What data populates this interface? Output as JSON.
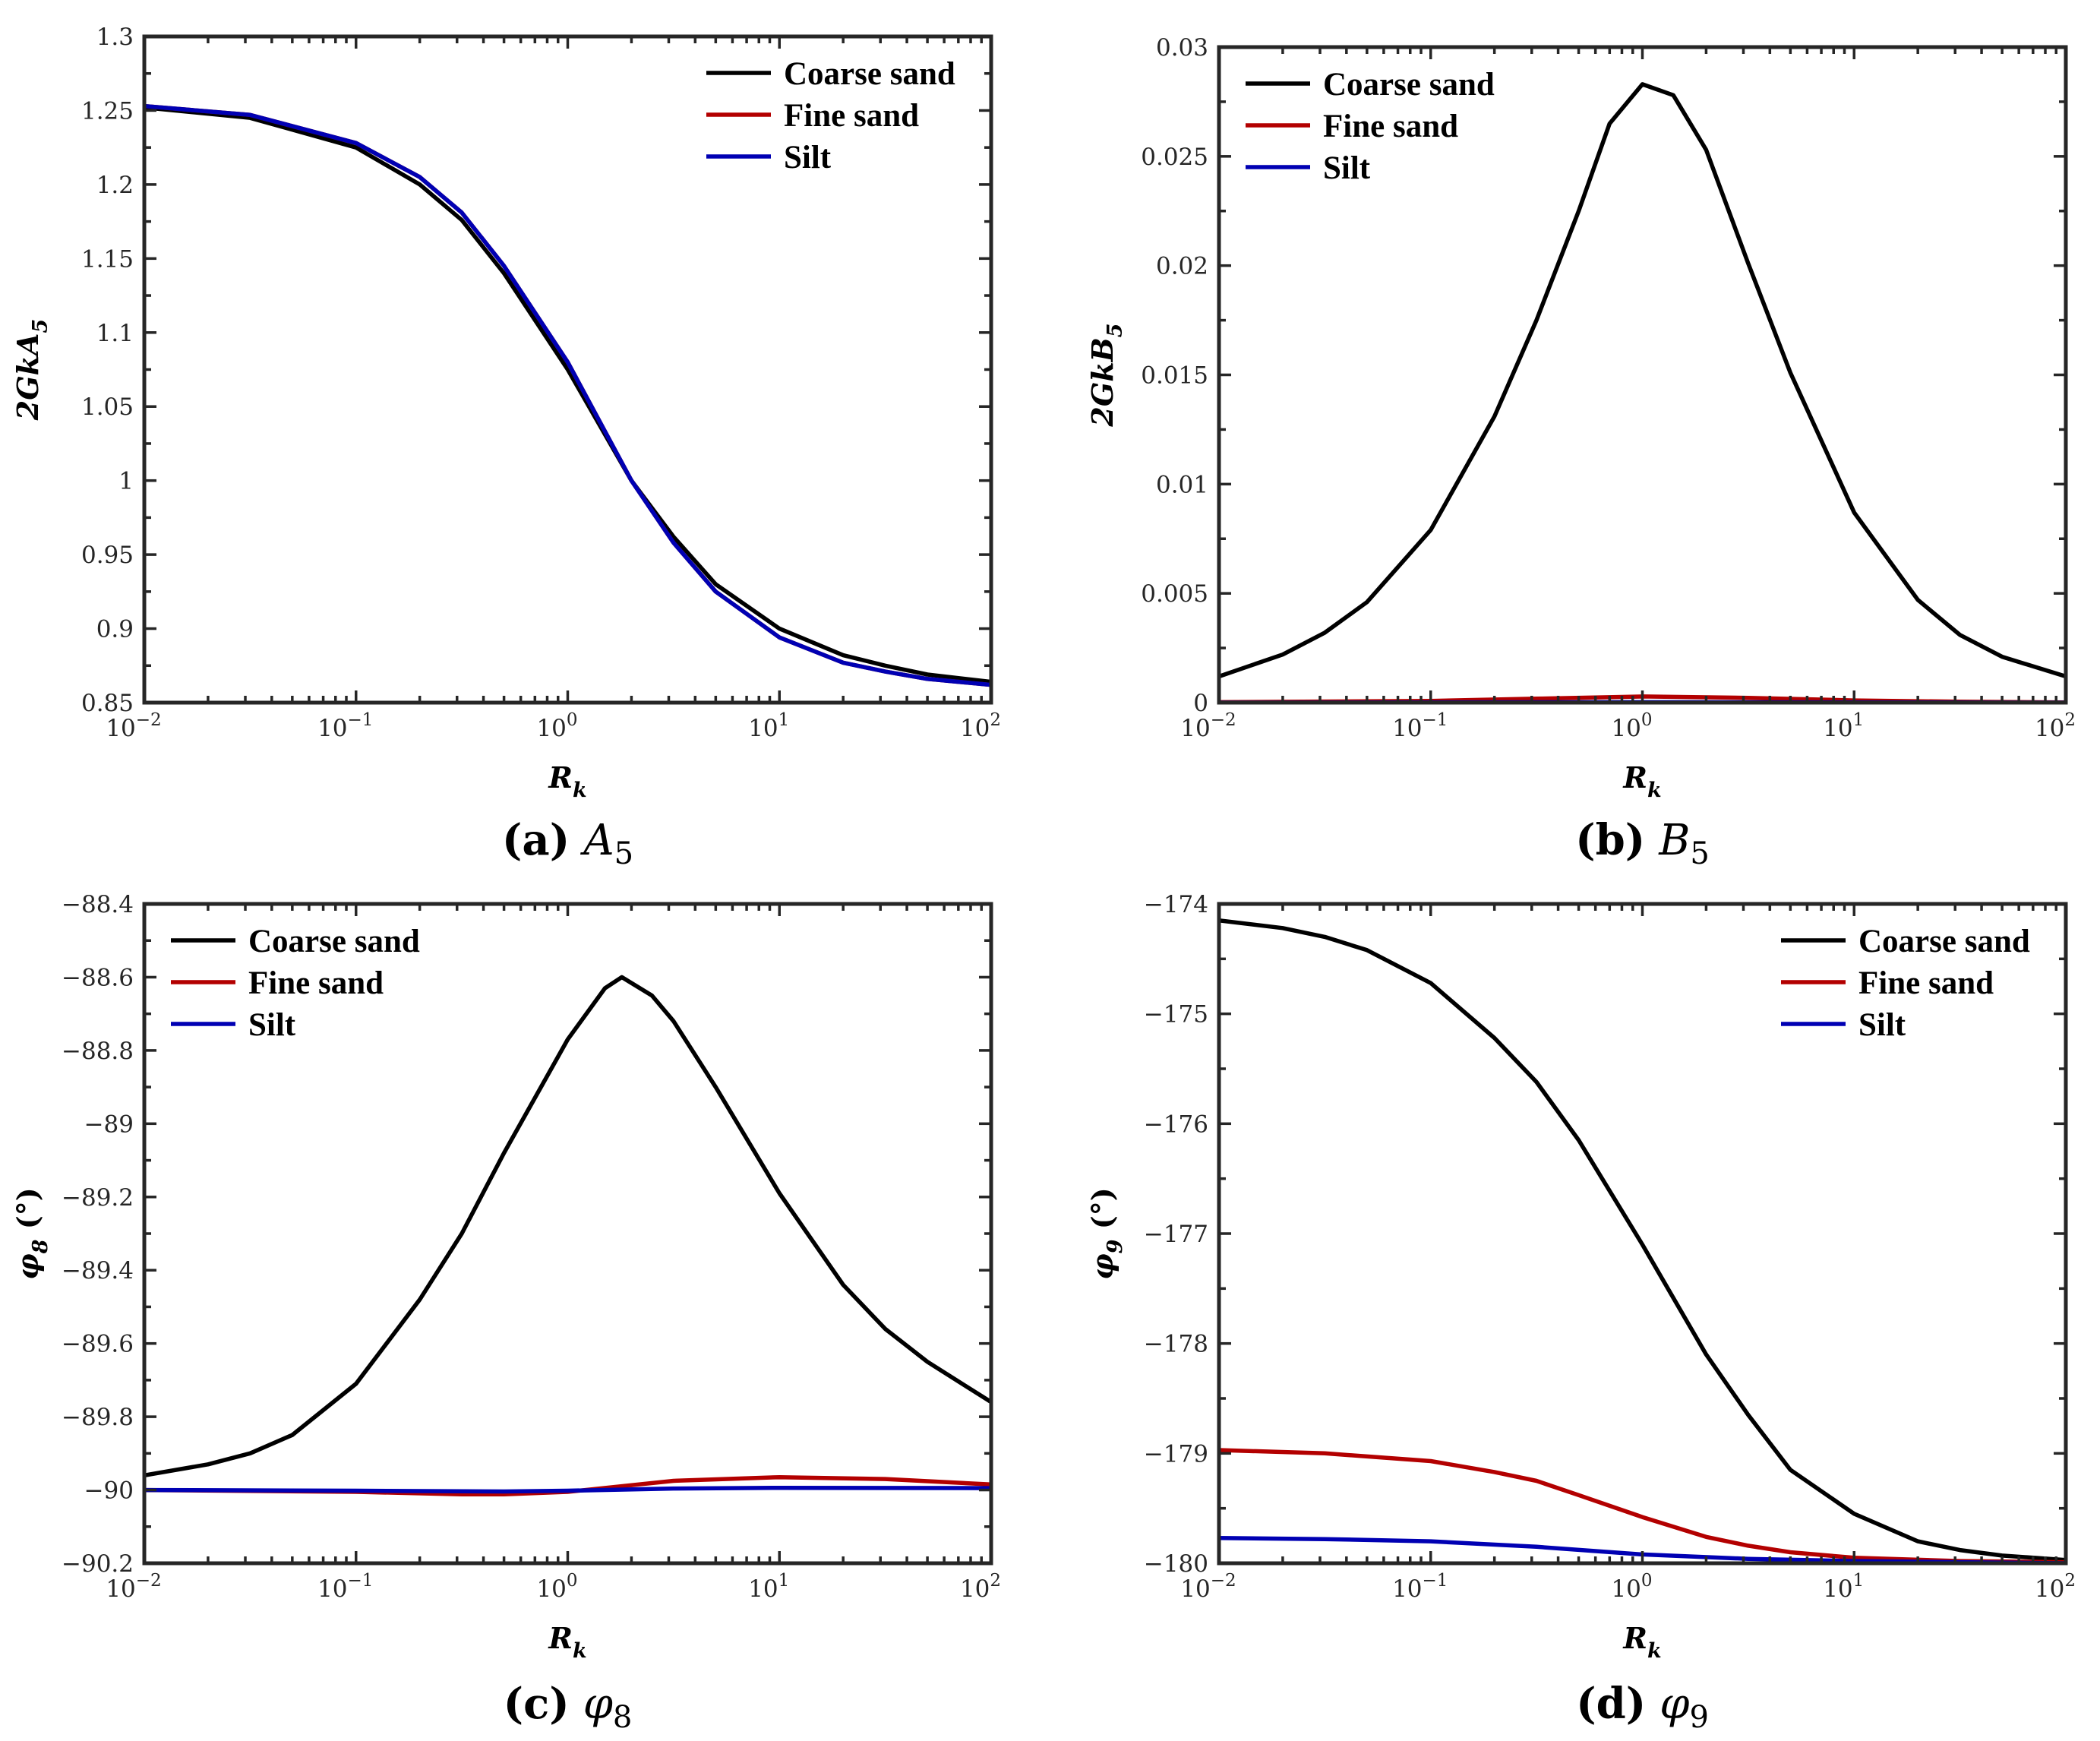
{
  "colors": {
    "coarse": "#000000",
    "fine": "#b30000",
    "silt": "#0000b3"
  },
  "chart_data": [
    {
      "id": "a",
      "type": "line",
      "xscale": "log",
      "xlim": [
        0.01,
        100
      ],
      "ylim": [
        0.85,
        1.3
      ],
      "xlabel": "R",
      "xlabel_sub": "k",
      "ylabel": "2GkA",
      "ylabel_sub": "5",
      "xticks": [
        {
          "base": "10",
          "exp": "−2"
        },
        {
          "base": "10",
          "exp": "−1"
        },
        {
          "base": "10",
          "exp": "0"
        },
        {
          "base": "10",
          "exp": "1"
        },
        {
          "base": "10",
          "exp": "2"
        }
      ],
      "yticks": [
        0.85,
        0.9,
        0.95,
        1,
        1.05,
        1.1,
        1.15,
        1.2,
        1.25,
        1.3
      ],
      "ytick_labels": [
        "0.85",
        "0.9",
        "0.95",
        "1",
        "1.05",
        "1.1",
        "1.15",
        "1.2",
        "1.25",
        "1.3"
      ],
      "legend_position": "top-right",
      "caption": {
        "tag": "(a)",
        "symbol": "A",
        "sub": "5"
      },
      "series": [
        {
          "name": "Coarse sand",
          "color_key": "coarse",
          "x": [
            0.01,
            0.0316,
            0.1,
            0.2,
            0.316,
            0.5,
            1,
            2,
            3.16,
            5,
            10,
            20,
            31.6,
            50,
            100
          ],
          "values": [
            1.252,
            1.245,
            1.225,
            1.2,
            1.176,
            1.14,
            1.075,
            1.0,
            0.962,
            0.93,
            0.9,
            0.882,
            0.875,
            0.869,
            0.864
          ]
        },
        {
          "name": "Fine sand",
          "color_key": "fine",
          "x": [
            0.01,
            0.0316,
            0.1,
            0.2,
            0.316,
            0.5,
            1,
            2,
            3.16,
            5,
            10,
            20,
            31.6,
            50,
            100
          ],
          "values": [
            1.253,
            1.247,
            1.228,
            1.205,
            1.181,
            1.145,
            1.08,
            1.0,
            0.958,
            0.925,
            0.894,
            0.877,
            0.871,
            0.866,
            0.862
          ]
        },
        {
          "name": "Silt",
          "color_key": "silt",
          "x": [
            0.01,
            0.0316,
            0.1,
            0.2,
            0.316,
            0.5,
            1,
            2,
            3.16,
            5,
            10,
            20,
            31.6,
            50,
            100
          ],
          "values": [
            1.253,
            1.247,
            1.228,
            1.205,
            1.181,
            1.145,
            1.08,
            1.0,
            0.958,
            0.925,
            0.894,
            0.877,
            0.871,
            0.866,
            0.862
          ]
        }
      ]
    },
    {
      "id": "b",
      "type": "line",
      "xscale": "log",
      "xlim": [
        0.01,
        100
      ],
      "ylim": [
        0,
        0.03
      ],
      "xlabel": "R",
      "xlabel_sub": "k",
      "ylabel": "2GkB",
      "ylabel_sub": "5",
      "xticks": [
        {
          "base": "10",
          "exp": "−2"
        },
        {
          "base": "10",
          "exp": "−1"
        },
        {
          "base": "10",
          "exp": "0"
        },
        {
          "base": "10",
          "exp": "1"
        },
        {
          "base": "10",
          "exp": "2"
        }
      ],
      "yticks": [
        0,
        0.005,
        0.01,
        0.015,
        0.02,
        0.025,
        0.03
      ],
      "ytick_labels": [
        "0",
        "0.005",
        "0.01",
        "0.015",
        "0.02",
        "0.025",
        "0.03"
      ],
      "legend_position": "top-left",
      "caption": {
        "tag": "(b)",
        "symbol": "B",
        "sub": "5"
      },
      "series": [
        {
          "name": "Coarse sand",
          "color_key": "coarse",
          "x": [
            0.01,
            0.02,
            0.0316,
            0.05,
            0.1,
            0.2,
            0.316,
            0.5,
            0.7,
            1,
            1.4,
            2,
            3.16,
            5,
            10,
            20,
            31.6,
            50,
            100
          ],
          "values": [
            0.0012,
            0.0022,
            0.0032,
            0.0046,
            0.0079,
            0.0131,
            0.0175,
            0.0225,
            0.0265,
            0.0283,
            0.0278,
            0.0253,
            0.0201,
            0.0151,
            0.0087,
            0.0047,
            0.0031,
            0.0021,
            0.0012
          ]
        },
        {
          "name": "Fine sand",
          "color_key": "fine",
          "x": [
            0.01,
            0.1,
            0.316,
            1,
            3.16,
            10,
            31.6,
            100
          ],
          "values": [
            2e-05,
            8e-05,
            0.00018,
            0.00028,
            0.00022,
            0.0001,
            4e-05,
            1e-05
          ]
        },
        {
          "name": "Silt",
          "color_key": "silt",
          "x": [
            0.01,
            1,
            100
          ],
          "values": [
            0,
            2e-05,
            0
          ]
        }
      ]
    },
    {
      "id": "c",
      "type": "line",
      "xscale": "log",
      "xlim": [
        0.01,
        100
      ],
      "ylim": [
        -90.2,
        -88.4
      ],
      "xlabel": "R",
      "xlabel_sub": "k",
      "ylabel": "φ",
      "ylabel_sub": "8",
      "ylabel_suffix": " (°)",
      "xticks": [
        {
          "base": "10",
          "exp": "−2"
        },
        {
          "base": "10",
          "exp": "−1"
        },
        {
          "base": "10",
          "exp": "0"
        },
        {
          "base": "10",
          "exp": "1"
        },
        {
          "base": "10",
          "exp": "2"
        }
      ],
      "yticks": [
        -90.2,
        -90,
        -89.8,
        -89.6,
        -89.4,
        -89.2,
        -89,
        -88.8,
        -88.6,
        -88.4
      ],
      "ytick_labels": [
        "−90.2",
        "−90",
        "−89.8",
        "−89.6",
        "−89.4",
        "−89.2",
        "−89",
        "−88.8",
        "−88.6",
        "−88.4"
      ],
      "legend_position": "top-left",
      "caption": {
        "tag": "(c)",
        "symbol": "φ",
        "sub": "8"
      },
      "series": [
        {
          "name": "Coarse sand",
          "color_key": "coarse",
          "x": [
            0.01,
            0.02,
            0.0316,
            0.05,
            0.1,
            0.2,
            0.316,
            0.5,
            1,
            1.5,
            1.8,
            2.5,
            3.16,
            5,
            10,
            20,
            31.6,
            50,
            100
          ],
          "values": [
            -89.96,
            -89.93,
            -89.9,
            -89.85,
            -89.71,
            -89.48,
            -89.3,
            -89.08,
            -88.77,
            -88.63,
            -88.6,
            -88.65,
            -88.72,
            -88.9,
            -89.19,
            -89.44,
            -89.56,
            -89.65,
            -89.76
          ]
        },
        {
          "name": "Fine sand",
          "color_key": "fine",
          "x": [
            0.01,
            0.1,
            0.316,
            0.5,
            1,
            1.78,
            3.16,
            10,
            31.6,
            100
          ],
          "values": [
            -90.0,
            -90.005,
            -90.012,
            -90.012,
            -90.005,
            -89.99,
            -89.975,
            -89.965,
            -89.97,
            -89.985
          ]
        },
        {
          "name": "Silt",
          "color_key": "silt",
          "x": [
            0.01,
            0.1,
            0.5,
            1,
            3.16,
            10,
            100
          ],
          "values": [
            -90.0,
            -90.002,
            -90.004,
            -90.002,
            -89.996,
            -89.994,
            -89.995
          ]
        }
      ]
    },
    {
      "id": "d",
      "type": "line",
      "xscale": "log",
      "xlim": [
        0.01,
        100
      ],
      "ylim": [
        -180,
        -174
      ],
      "xlabel": "R",
      "xlabel_sub": "k",
      "ylabel": "φ",
      "ylabel_sub": "9",
      "ylabel_suffix": " (°)",
      "xticks": [
        {
          "base": "10",
          "exp": "−2"
        },
        {
          "base": "10",
          "exp": "−1"
        },
        {
          "base": "10",
          "exp": "0"
        },
        {
          "base": "10",
          "exp": "1"
        },
        {
          "base": "10",
          "exp": "2"
        }
      ],
      "yticks": [
        -180,
        -179,
        -178,
        -177,
        -176,
        -175,
        -174
      ],
      "ytick_labels": [
        "−180",
        "−179",
        "−178",
        "−177",
        "−176",
        "−175",
        "−174"
      ],
      "legend_position": "top-right",
      "caption": {
        "tag": "(d)",
        "symbol": "φ",
        "sub": "9"
      },
      "series": [
        {
          "name": "Coarse sand",
          "color_key": "coarse",
          "x": [
            0.01,
            0.02,
            0.0316,
            0.05,
            0.1,
            0.2,
            0.316,
            0.5,
            1,
            2,
            3.16,
            5,
            10,
            20,
            31.6,
            50,
            100
          ],
          "values": [
            -174.15,
            -174.22,
            -174.3,
            -174.42,
            -174.72,
            -175.22,
            -175.62,
            -176.15,
            -177.1,
            -178.1,
            -178.65,
            -179.15,
            -179.55,
            -179.8,
            -179.88,
            -179.93,
            -179.97
          ]
        },
        {
          "name": "Fine sand",
          "color_key": "fine",
          "x": [
            0.01,
            0.0316,
            0.1,
            0.2,
            0.316,
            0.5,
            1,
            2,
            3.16,
            5,
            10,
            31.6,
            100
          ],
          "values": [
            -178.97,
            -179.0,
            -179.07,
            -179.17,
            -179.25,
            -179.38,
            -179.58,
            -179.76,
            -179.84,
            -179.9,
            -179.95,
            -179.98,
            -179.99
          ]
        },
        {
          "name": "Silt",
          "color_key": "silt",
          "x": [
            0.01,
            0.0316,
            0.1,
            0.316,
            1,
            3.16,
            10,
            31.6,
            100
          ],
          "values": [
            -179.77,
            -179.78,
            -179.8,
            -179.85,
            -179.92,
            -179.96,
            -179.98,
            -179.99,
            -180.0
          ]
        }
      ]
    }
  ]
}
